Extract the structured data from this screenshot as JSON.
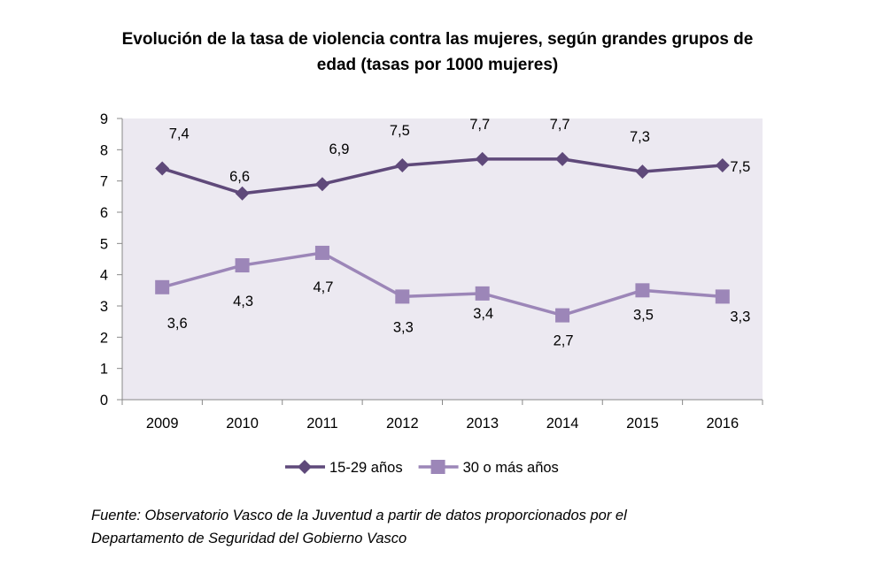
{
  "chart_data": {
    "type": "line",
    "title_lines": [
      "Evolución de la tasa de violencia contra las mujeres, según grandes grupos de",
      "edad (tasas por 1000 mujeres)"
    ],
    "categories": [
      "2009",
      "2010",
      "2011",
      "2012",
      "2013",
      "2014",
      "2015",
      "2016"
    ],
    "ylim": [
      0,
      9
    ],
    "yticks": [
      "0",
      "1",
      "2",
      "3",
      "4",
      "5",
      "6",
      "7",
      "8",
      "9"
    ],
    "grid": false,
    "plot_background": "#ece9f1",
    "legend_position": "bottom",
    "series": [
      {
        "name": "15-29 años",
        "values": [
          7.4,
          6.6,
          6.9,
          7.5,
          7.7,
          7.7,
          7.3,
          7.5
        ],
        "labels": [
          "7,4",
          "6,6",
          "6,9",
          "7,5",
          "7,7",
          "7,7",
          "7,3",
          "7,5"
        ],
        "color": "#5f497a",
        "marker": "diamond"
      },
      {
        "name": "30 o más años",
        "values": [
          3.6,
          4.3,
          4.7,
          3.3,
          3.4,
          2.7,
          3.5,
          3.3
        ],
        "labels": [
          "3,6",
          "4,3",
          "4,7",
          "3,3",
          "3,4",
          "2,7",
          "3,5",
          "3,3"
        ],
        "color": "#9c86b8",
        "marker": "square"
      }
    ]
  },
  "source_lines": [
    "Fuente: Observatorio Vasco de la Juventud a partir de datos proporcionados por el",
    "Departamento de Seguridad del Gobierno Vasco"
  ]
}
